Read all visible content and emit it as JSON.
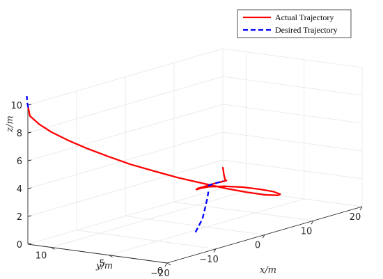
{
  "chart_data": {
    "type": "line",
    "projection": "3d",
    "xlabel": "x/m",
    "ylabel": "y/m",
    "zlabel": "z/m",
    "xlim": [
      -20,
      20
    ],
    "ylim": [
      0,
      12
    ],
    "zlim": [
      0,
      10
    ],
    "xticks": [
      "−20",
      "−10",
      "0",
      "10",
      "20"
    ],
    "yticks": [
      "0",
      "5",
      "10"
    ],
    "zticks": [
      "0",
      "2",
      "4",
      "6",
      "8",
      "10"
    ],
    "grid": true,
    "legend_position": "top-right",
    "series": [
      {
        "name": "Actual Trajectory",
        "color": "#ff0000",
        "style": "solid",
        "points": [
          [
            -19.2,
            12.3,
            9.7
          ],
          [
            -18.4,
            12.5,
            9.0
          ],
          [
            -17.0,
            12.3,
            8.3
          ],
          [
            -15.4,
            11.9,
            7.6
          ],
          [
            -13.5,
            11.3,
            6.9
          ],
          [
            -11.5,
            10.5,
            6.2
          ],
          [
            -9.3,
            9.6,
            5.5
          ],
          [
            -7.0,
            8.6,
            4.8
          ],
          [
            -4.7,
            7.5,
            4.2
          ],
          [
            -2.3,
            6.4,
            3.6
          ],
          [
            0.0,
            5.3,
            3.1
          ],
          [
            2.4,
            4.3,
            2.6
          ],
          [
            4.6,
            3.4,
            2.2
          ],
          [
            6.6,
            2.7,
            1.9
          ],
          [
            8.2,
            2.3,
            1.75
          ],
          [
            8.9,
            2.4,
            1.75
          ],
          [
            8.7,
            2.9,
            1.9
          ],
          [
            7.6,
            3.6,
            2.1
          ],
          [
            5.8,
            4.4,
            2.35
          ],
          [
            3.7,
            5.0,
            2.55
          ],
          [
            1.5,
            5.4,
            2.7
          ],
          [
            -0.6,
            5.3,
            2.8
          ],
          [
            -2.1,
            5.0,
            2.9
          ],
          [
            -2.8,
            4.6,
            3.1
          ],
          [
            -2.4,
            4.3,
            3.2
          ],
          [
            -1.0,
            4.2,
            3.25
          ],
          [
            0.8,
            4.3,
            3.2
          ],
          [
            2.5,
            4.5,
            3.1
          ],
          [
            3.6,
            4.8,
            3.0
          ],
          [
            4.3,
            5.2,
            2.9
          ],
          [
            5.2,
            5.7,
            3.2
          ],
          [
            6.2,
            6.2,
            3.5
          ]
        ]
      },
      {
        "name": "Desired Trajectory",
        "color": "#0000ff",
        "style": "dashed",
        "points": [
          [
            -19.2,
            12.3,
            9.7
          ],
          [
            -18.0,
            12.9,
            9.9
          ],
          [
            -16.4,
            13.6,
            10.1
          ],
          [
            -8.0,
            2.6,
            0.7
          ],
          [
            -6.8,
            2.5,
            1.55
          ],
          [
            -5.3,
            2.9,
            2.15
          ],
          [
            -3.7,
            3.4,
            2.55
          ],
          [
            -2.0,
            4.0,
            2.85
          ]
        ],
        "segments": [
          [
            0,
            3
          ],
          [
            3,
            8
          ]
        ]
      }
    ],
    "dashed_overlay": [
      [
        -1.6,
        4.2,
        3.22
      ],
      [
        -0.2,
        4.2,
        3.25
      ],
      [
        1.0,
        4.3,
        3.2
      ],
      [
        2.2,
        4.5,
        3.15
      ]
    ]
  }
}
